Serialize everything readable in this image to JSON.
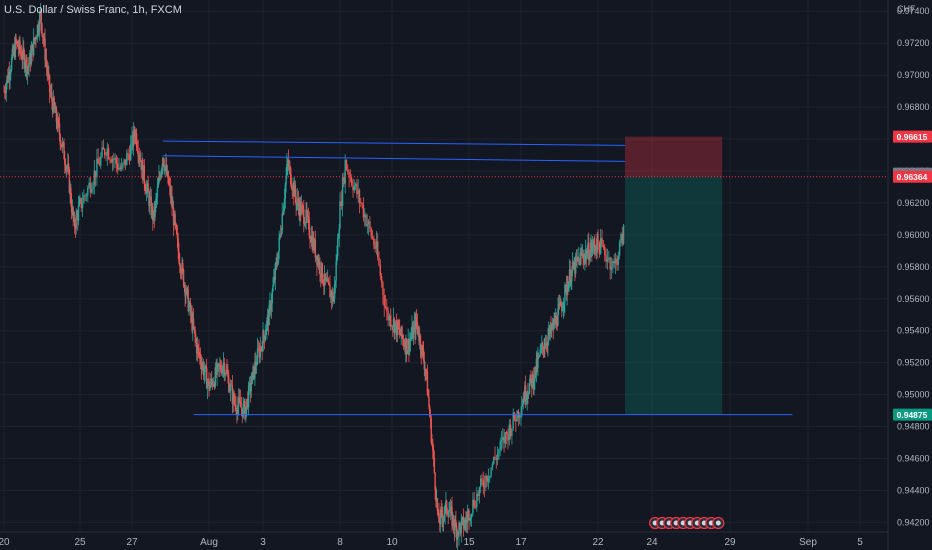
{
  "header": {
    "title": "U.S. Dollar / Swiss Franc, 1h, FXCM"
  },
  "colors": {
    "background": "#131722",
    "grid": "#1e222d",
    "up": "#26a69a",
    "down": "#ef5350",
    "trendline": "#2962ff",
    "text": "#b2b5be",
    "stop_zone": "rgba(242,54,69,0.30)",
    "target_zone": "rgba(8,153,129,0.25)"
  },
  "chart_data": {
    "type": "candlestick",
    "symbol": "U.S. Dollar / Swiss Franc, 1h, FXCM",
    "currency": "CHF",
    "y_tick_labels": [
      "0.97400",
      "0.97200",
      "0.97000",
      "0.96800",
      "0.96600",
      "0.96400",
      "0.96200",
      "0.96000",
      "0.95800",
      "0.95600",
      "0.95400",
      "0.95200",
      "0.95000",
      "0.94800",
      "0.94600",
      "0.94400",
      "0.94200"
    ],
    "y_ticks": [
      0.974,
      0.972,
      0.97,
      0.968,
      0.966,
      0.964,
      0.962,
      0.96,
      0.958,
      0.956,
      0.954,
      0.952,
      0.95,
      0.948,
      0.946,
      0.944,
      0.942
    ],
    "ylim": [
      0.9414,
      0.9747
    ],
    "x_tick_labels": [
      {
        "label": "20",
        "day": 0
      },
      {
        "label": "25",
        "day": 5
      },
      {
        "label": "27",
        "day": 7
      },
      {
        "label": "Aug",
        "day": 12
      },
      {
        "label": "3",
        "day": 15
      },
      {
        "label": "8",
        "day": 20
      },
      {
        "label": "10",
        "day": 22
      },
      {
        "label": "15",
        "day": 27
      },
      {
        "label": "17",
        "day": 29
      },
      {
        "label": "22",
        "day": 34
      },
      {
        "label": "24",
        "day": 36
      },
      {
        "label": "29",
        "day": 41
      },
      {
        "label": "Sep",
        "day": 46
      },
      {
        "label": "5",
        "day": 51
      }
    ],
    "xlim_days": [
      0,
      54
    ],
    "close_path": [
      [
        0.0,
        0.969
      ],
      [
        0.8,
        0.972
      ],
      [
        1.6,
        0.9705
      ],
      [
        2.4,
        0.9738
      ],
      [
        3.0,
        0.969
      ],
      [
        3.5,
        0.967
      ],
      [
        4.2,
        0.964
      ],
      [
        4.6,
        0.9605
      ],
      [
        5.2,
        0.9625
      ],
      [
        6.0,
        0.9655
      ],
      [
        6.6,
        0.964
      ],
      [
        7.2,
        0.9665
      ],
      [
        7.8,
        0.9635
      ],
      [
        8.4,
        0.961
      ],
      [
        9.0,
        0.965
      ],
      [
        9.5,
        0.9625
      ],
      [
        10.0,
        0.959
      ],
      [
        10.6,
        0.956
      ],
      [
        11.2,
        0.953
      ],
      [
        12.0,
        0.9505
      ],
      [
        12.8,
        0.952
      ],
      [
        13.4,
        0.9495
      ],
      [
        14.0,
        0.949
      ],
      [
        14.6,
        0.952
      ],
      [
        15.4,
        0.955
      ],
      [
        16.0,
        0.959
      ],
      [
        16.6,
        0.9645
      ],
      [
        17.2,
        0.962
      ],
      [
        17.8,
        0.961
      ],
      [
        18.4,
        0.959
      ],
      [
        19.0,
        0.957
      ],
      [
        19.6,
        0.956
      ],
      [
        20.2,
        0.9645
      ],
      [
        20.8,
        0.962
      ],
      [
        21.4,
        0.959
      ],
      [
        21.8,
        0.955
      ],
      [
        22.4,
        0.954
      ],
      [
        23.0,
        0.953
      ],
      [
        23.6,
        0.9545
      ],
      [
        24.2,
        0.9515
      ],
      [
        24.6,
        0.947
      ],
      [
        25.0,
        0.942
      ],
      [
        25.6,
        0.943
      ],
      [
        26.2,
        0.9415
      ],
      [
        26.8,
        0.942
      ],
      [
        27.4,
        0.944
      ],
      [
        28.0,
        0.946
      ],
      [
        28.6,
        0.948
      ],
      [
        29.2,
        0.95
      ],
      [
        29.8,
        0.951
      ],
      [
        30.4,
        0.953
      ],
      [
        31.0,
        0.954
      ],
      [
        31.6,
        0.9555
      ],
      [
        32.2,
        0.9575
      ],
      [
        32.8,
        0.9585
      ],
      [
        33.4,
        0.959
      ],
      [
        34.0,
        0.9595
      ],
      [
        34.6,
        0.958
      ],
      [
        35.0,
        0.9605
      ]
    ],
    "horizontal_lines": [
      {
        "name": "upper-trendline",
        "day_start": 9.0,
        "price_start": 0.96587,
        "day_end": 35.0,
        "price_end": 0.9656
      },
      {
        "name": "middle-trendline",
        "day_start": 9.0,
        "price_start": 0.96495,
        "day_end": 35.0,
        "price_end": 0.9646
      },
      {
        "name": "support-line",
        "day_start": 11.0,
        "price_start": 0.94875,
        "day_end": 45.0,
        "price_end": 0.94875
      }
    ],
    "position": {
      "type": "short",
      "day_start": 35.0,
      "day_end": 40.5,
      "entry": 0.96364,
      "stop": 0.96615,
      "target": 0.94875
    },
    "price_labels": [
      {
        "value": "0.96615",
        "price": 0.96615,
        "color": "#f23645"
      },
      {
        "value": "0.96383",
        "price": 0.96383,
        "color": "#787b86"
      },
      {
        "value": "0.96364",
        "price": 0.96364,
        "color": "#f23645"
      },
      {
        "value": "0.94875",
        "price": 0.94875,
        "color": "#089981"
      }
    ],
    "current_price": 0.96364,
    "event_markers": {
      "count": 10,
      "day_start": 36.2,
      "day_step": 0.45
    }
  }
}
